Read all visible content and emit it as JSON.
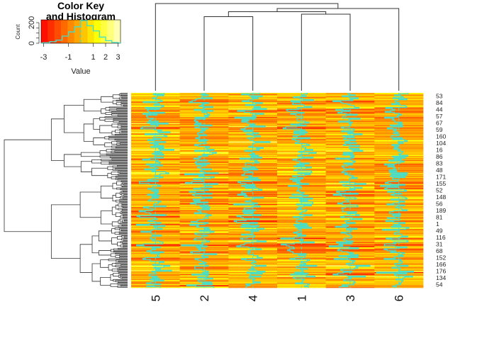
{
  "chart_data": {
    "type": "heatmap",
    "column_labels": [
      "5",
      "2",
      "4",
      "1",
      "3",
      "6"
    ],
    "row_labels_shown": [
      "53",
      "84",
      "44",
      "57",
      "67",
      "59",
      "160",
      "104",
      "16",
      "86",
      "83",
      "48",
      "171",
      "155",
      "52",
      "148",
      "56",
      "189",
      "81",
      "1",
      "49",
      "116",
      "31",
      "68",
      "152",
      "166",
      "176",
      "134",
      "54"
    ],
    "row_dendrogram": true,
    "column_dendrogram": true,
    "trace": "column",
    "trace_color": "#40E0D0",
    "color_scale": {
      "low": "#FF0000",
      "mid": "#FFFF00",
      "high": "#FFFFD0"
    },
    "color_key": {
      "title_line1": "Color Key",
      "title_line2": "and Histogram",
      "xlabel": "Value",
      "ylabel": "Count",
      "x_ticks": [
        "-3",
        "-1",
        "1",
        "2",
        "3"
      ],
      "y_ticks": [
        "0",
        "200"
      ],
      "range": [
        -3.2,
        3.2
      ],
      "histogram_bins": [
        -3,
        -2.5,
        -2,
        -1.5,
        -1,
        -0.5,
        0,
        0.5,
        1,
        1.5,
        2,
        2.5,
        3
      ],
      "histogram_counts": [
        5,
        15,
        30,
        70,
        110,
        160,
        220,
        170,
        120,
        60,
        25,
        8
      ]
    }
  }
}
